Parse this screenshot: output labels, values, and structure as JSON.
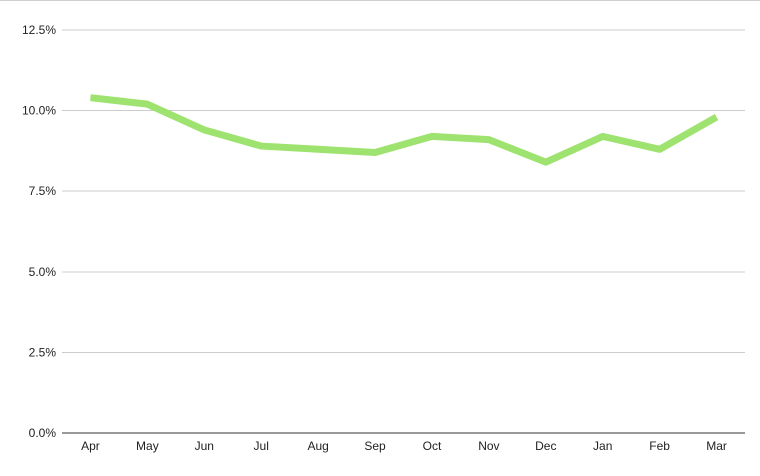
{
  "chart_data": {
    "type": "line",
    "title": "",
    "xlabel": "",
    "ylabel": "",
    "categories": [
      "Apr",
      "May",
      "Jun",
      "Jul",
      "Aug",
      "Sep",
      "Oct",
      "Nov",
      "Dec",
      "Jan",
      "Feb",
      "Mar"
    ],
    "series": [
      {
        "values": [
          10.4,
          10.2,
          9.4,
          8.9,
          8.8,
          8.7,
          9.2,
          9.1,
          8.4,
          9.2,
          8.8,
          9.8
        ]
      }
    ],
    "ylim": [
      0,
      12.5
    ],
    "yticks": [
      {
        "value": 0,
        "label": "0.0%"
      },
      {
        "value": 2.5,
        "label": "2.5%"
      },
      {
        "value": 5,
        "label": "5.0%"
      },
      {
        "value": 7.5,
        "label": "7.5%"
      },
      {
        "value": 10,
        "label": "10.0%"
      },
      {
        "value": 12.5,
        "label": "12.5%"
      }
    ],
    "grid": true,
    "legend": "none",
    "line_color": "#9ee36f",
    "grid_color": "#cccccc",
    "baseline_color": "#333333"
  }
}
